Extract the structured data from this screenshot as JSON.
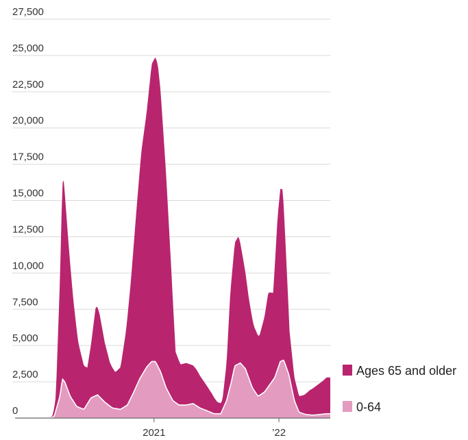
{
  "chart_data": {
    "type": "area",
    "stacked": true,
    "ylim": [
      0,
      27500
    ],
    "y_ticks": [
      {
        "value": 0,
        "label": "0"
      },
      {
        "value": 2500,
        "label": "2,500"
      },
      {
        "value": 5000,
        "label": "5,000"
      },
      {
        "value": 7500,
        "label": "7,500"
      },
      {
        "value": 10000,
        "label": "10,000"
      },
      {
        "value": 12500,
        "label": "12,500"
      },
      {
        "value": 15000,
        "label": "15,000"
      },
      {
        "value": 17500,
        "label": "17,500"
      },
      {
        "value": 20000,
        "label": "20,000"
      },
      {
        "value": 22500,
        "label": "22,500"
      },
      {
        "value": 25000,
        "label": "25,000"
      },
      {
        "value": 27500,
        "label": "27,500"
      }
    ],
    "x_range": [
      "2020-03-01",
      "2022-05-31"
    ],
    "x_ticks": [
      {
        "date": "2021-01-01",
        "label": "2021"
      },
      {
        "date": "2022-01-01",
        "label": "’22"
      }
    ],
    "grid": "horizontal",
    "legend_position": "bottom-right",
    "colors": {
      "older": "#b8256e",
      "younger": "#e49bc0",
      "grid": "#d9d9d9",
      "outline": "#ffffff"
    },
    "series": [
      {
        "name": "0-64",
        "x": [
          "2020-03-01",
          "2020-03-15",
          "2020-04-01",
          "2020-04-08",
          "2020-04-15",
          "2020-05-01",
          "2020-05-20",
          "2020-06-10",
          "2020-07-01",
          "2020-07-20",
          "2020-08-10",
          "2020-09-01",
          "2020-09-25",
          "2020-10-15",
          "2020-11-01",
          "2020-11-20",
          "2020-12-10",
          "2020-12-25",
          "2021-01-05",
          "2021-01-20",
          "2021-02-05",
          "2021-02-25",
          "2021-03-15",
          "2021-04-05",
          "2021-04-25",
          "2021-05-15",
          "2021-06-05",
          "2021-06-25",
          "2021-07-15",
          "2021-08-01",
          "2021-08-15",
          "2021-08-25",
          "2021-09-10",
          "2021-09-25",
          "2021-10-15",
          "2021-11-01",
          "2021-11-20",
          "2021-12-05",
          "2021-12-20",
          "2022-01-05",
          "2022-01-15",
          "2022-01-30",
          "2022-02-15",
          "2022-03-01",
          "2022-03-20",
          "2022-04-10",
          "2022-05-01",
          "2022-05-20",
          "2022-05-31"
        ],
        "values": [
          0,
          100,
          1500,
          2700,
          2500,
          1500,
          800,
          600,
          1400,
          1600,
          1100,
          700,
          600,
          900,
          1700,
          2700,
          3500,
          3900,
          3900,
          3200,
          2100,
          1200,
          900,
          900,
          1000,
          700,
          500,
          300,
          300,
          1200,
          2500,
          3600,
          3800,
          3400,
          2100,
          1500,
          1800,
          2300,
          2800,
          3900,
          4000,
          3000,
          1200,
          400,
          250,
          200,
          250,
          300,
          300
        ]
      },
      {
        "name": "Ages 65 and older",
        "x": [
          "2020-03-01",
          "2020-03-10",
          "2020-03-20",
          "2020-04-01",
          "2020-04-08",
          "2020-04-12",
          "2020-04-25",
          "2020-05-10",
          "2020-05-25",
          "2020-06-10",
          "2020-06-20",
          "2020-07-01",
          "2020-07-15",
          "2020-07-25",
          "2020-08-10",
          "2020-08-25",
          "2020-09-10",
          "2020-09-25",
          "2020-10-10",
          "2020-10-25",
          "2020-11-10",
          "2020-11-25",
          "2020-12-10",
          "2020-12-25",
          "2021-01-05",
          "2021-01-12",
          "2021-01-20",
          "2021-02-05",
          "2021-02-20",
          "2021-03-05",
          "2021-03-20",
          "2021-04-05",
          "2021-04-20",
          "2021-05-05",
          "2021-05-20",
          "2021-06-05",
          "2021-06-20",
          "2021-07-05",
          "2021-07-20",
          "2021-08-01",
          "2021-08-12",
          "2021-08-25",
          "2021-09-05",
          "2021-09-20",
          "2021-10-05",
          "2021-10-20",
          "2021-11-05",
          "2021-11-20",
          "2021-12-01",
          "2021-12-15",
          "2021-12-28",
          "2022-01-05",
          "2022-01-12",
          "2022-01-20",
          "2022-02-01",
          "2022-02-15",
          "2022-03-01",
          "2022-03-15",
          "2022-04-01",
          "2022-04-20",
          "2022-05-10",
          "2022-05-20",
          "2022-05-31"
        ],
        "values": [
          0,
          100,
          1000,
          8000,
          13500,
          13800,
          10500,
          7000,
          4400,
          3000,
          2500,
          3700,
          6200,
          5800,
          4100,
          3000,
          2500,
          2900,
          5000,
          8000,
          12000,
          15500,
          17500,
          20500,
          21000,
          20800,
          19400,
          14800,
          9000,
          3500,
          2800,
          2900,
          2700,
          2500,
          2100,
          1700,
          1300,
          800,
          700,
          2600,
          6500,
          8500,
          8800,
          7200,
          5500,
          4400,
          4100,
          5200,
          6500,
          6000,
          10500,
          11900,
          11800,
          8500,
          3200,
          1600,
          1100,
          1300,
          1700,
          2000,
          2300,
          2500,
          2500
        ]
      }
    ]
  }
}
